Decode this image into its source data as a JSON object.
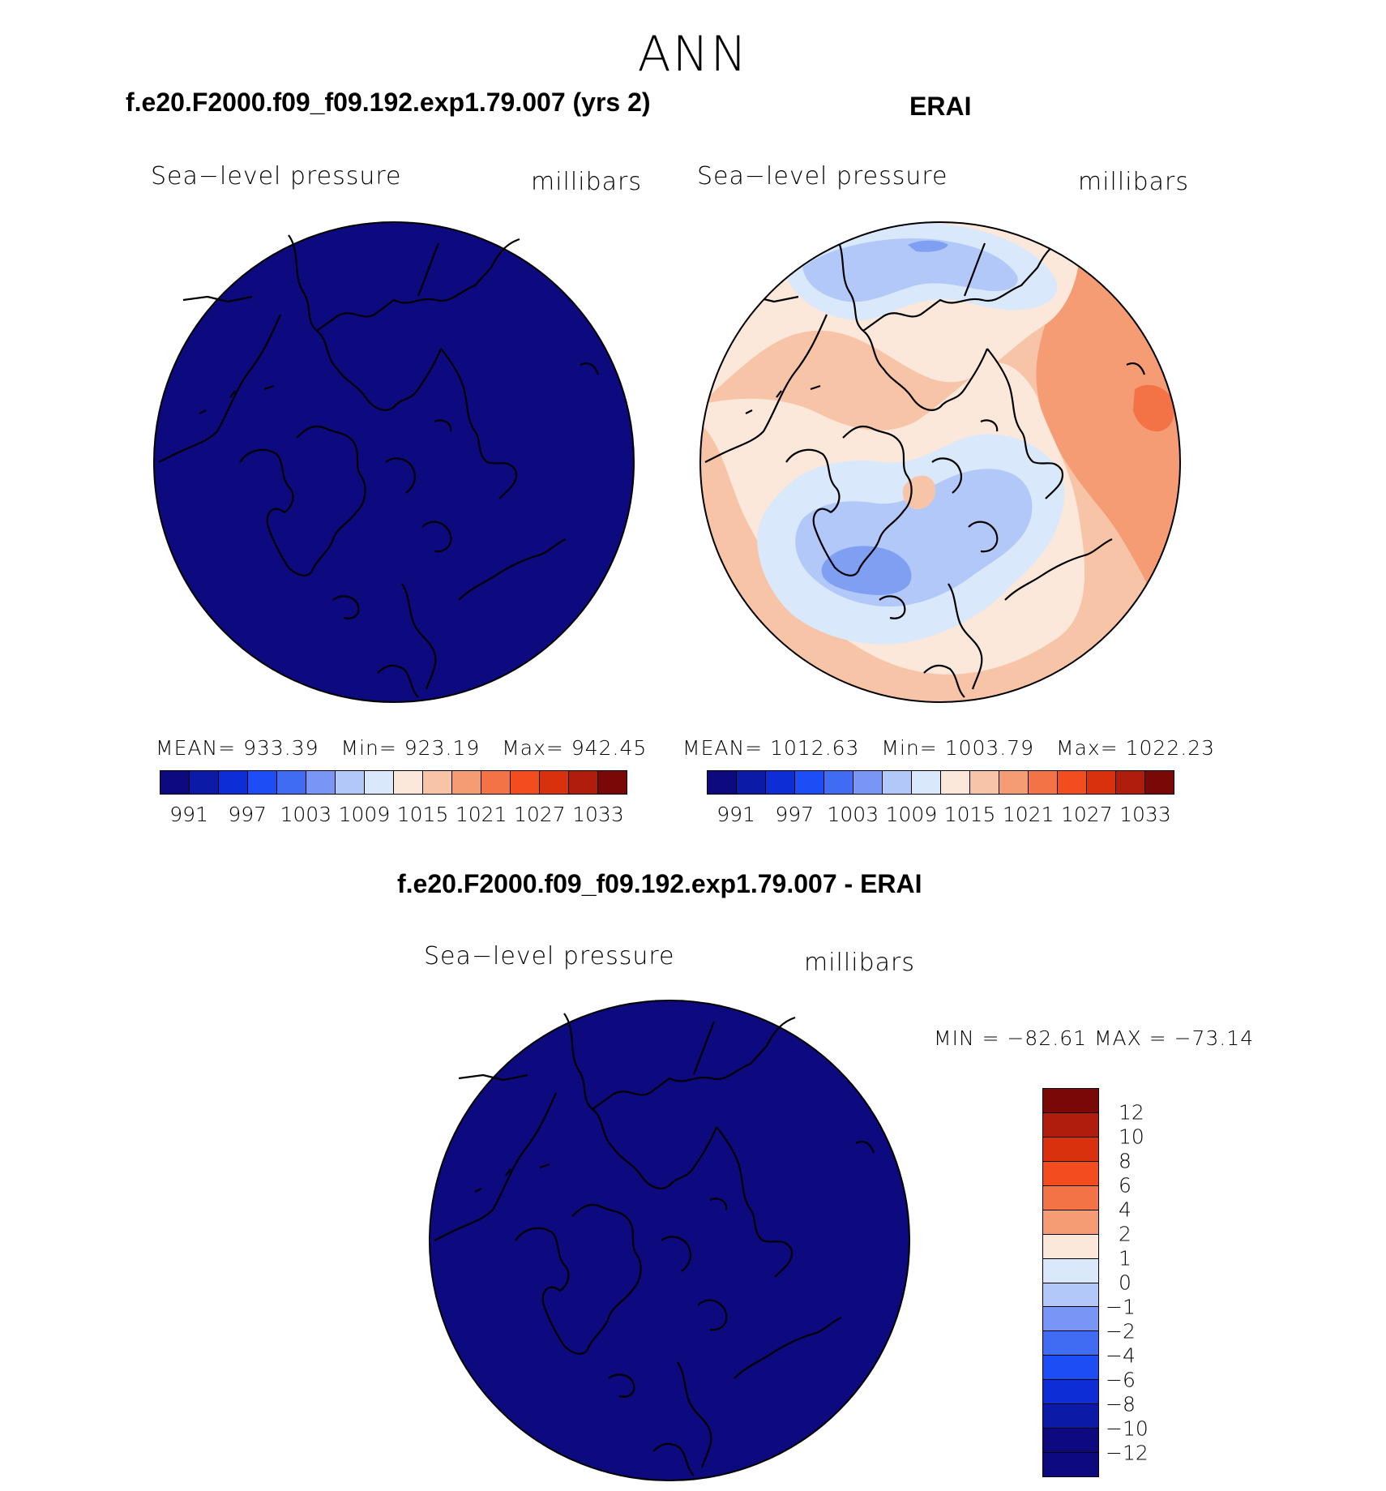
{
  "title": "ANN",
  "panels": {
    "model": {
      "case_title": "f.e20.F2000.f09_f09.192.exp1.79.007 (yrs 2)",
      "variable": "Sea−level pressure",
      "units": "millibars",
      "stats": {
        "mean_label": "MEAN=",
        "mean": "933.39",
        "min_label": "Min=",
        "min": "923.19",
        "max_label": "Max=",
        "max": "942.45"
      },
      "fill_color": "#0c0a7e"
    },
    "obs": {
      "case_title": "ERAI",
      "variable": "Sea−level pressure",
      "units": "millibars",
      "stats": {
        "mean_label": "MEAN=",
        "mean": "1012.63",
        "min_label": "Min=",
        "min": "1003.79",
        "max_label": "Max=",
        "max": "1022.23"
      }
    },
    "diff": {
      "case_title": "f.e20.F2000.f09_f09.192.exp1.79.007 - ERAI",
      "variable": "Sea−level pressure",
      "units": "millibars",
      "stats_text": "MIN = −82.61 MAX = −73.14",
      "fill_color": "#0c0a7e"
    }
  },
  "colorbar_main": {
    "colors": [
      "#0c0a7e",
      "#0c1aa8",
      "#0d2ed6",
      "#1d4df5",
      "#3f6cf2",
      "#7896f5",
      "#b2c8f8",
      "#d9e8fb",
      "#fbe8da",
      "#f8c4a8",
      "#f59c74",
      "#f37346",
      "#f24c1f",
      "#d9300d",
      "#b01d0c",
      "#7a0806"
    ],
    "labels": [
      "991",
      "997",
      "1003",
      "1009",
      "1015",
      "1021",
      "1027",
      "1033"
    ]
  },
  "colorbar_diff": {
    "colors_top_to_bottom": [
      "#7a0806",
      "#b01d0c",
      "#d9300d",
      "#f24c1f",
      "#f37346",
      "#f59c74",
      "#fbe8da",
      "#d9e8fb",
      "#b2c8f8",
      "#7896f5",
      "#3f6cf2",
      "#1d4df5",
      "#0d2ed6",
      "#0c1aa8",
      "#0c0a7e",
      "#0c0a7e"
    ],
    "labels_top_to_bottom": [
      "12",
      "10",
      "8",
      "6",
      "4",
      "2",
      "1",
      "0",
      "−1",
      "−2",
      "−4",
      "−6",
      "−8",
      "−10",
      "−12"
    ]
  },
  "obs_palette": {
    "blue_dark": "#7f9ff2",
    "blue_mid": "#b2c8f8",
    "blue_light": "#d9e8fb",
    "cream": "#fbe8da",
    "peach": "#f8c4a8",
    "orange": "#f59c74"
  }
}
